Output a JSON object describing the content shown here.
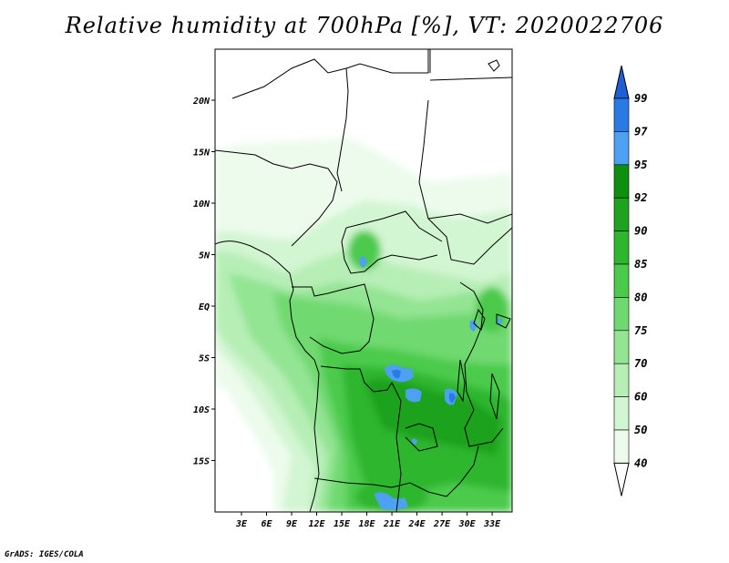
{
  "title": "Relative humidity at 700hPa [%], VT: 2020022706",
  "credit": "GrADS: IGES/COLA",
  "map": {
    "lat_labels": [
      "20N",
      "15N",
      "10N",
      "5N",
      "EQ",
      "5S",
      "10S",
      "15S"
    ],
    "lon_labels": [
      "3E",
      "6E",
      "9E",
      "12E",
      "15E",
      "18E",
      "21E",
      "24E",
      "27E",
      "30E",
      "33E"
    ],
    "lat_values": [
      20,
      15,
      10,
      5,
      0,
      -5,
      -10,
      -15
    ],
    "lon_values": [
      3,
      6,
      9,
      12,
      15,
      18,
      21,
      24,
      27,
      30,
      33
    ]
  },
  "colorbar": {
    "labels": [
      "99",
      "97",
      "95",
      "92",
      "90",
      "85",
      "80",
      "75",
      "70",
      "60",
      "50",
      "40"
    ],
    "colors": [
      "#1e5fd6",
      "#2a7ae6",
      "#4ea0f2",
      "#0f8f0f",
      "#1fa21f",
      "#2fb62f",
      "#4cca4c",
      "#6fd96f",
      "#93e493",
      "#b6eeb6",
      "#d2f5d2",
      "#ecfbec",
      "#ffffff"
    ]
  }
}
